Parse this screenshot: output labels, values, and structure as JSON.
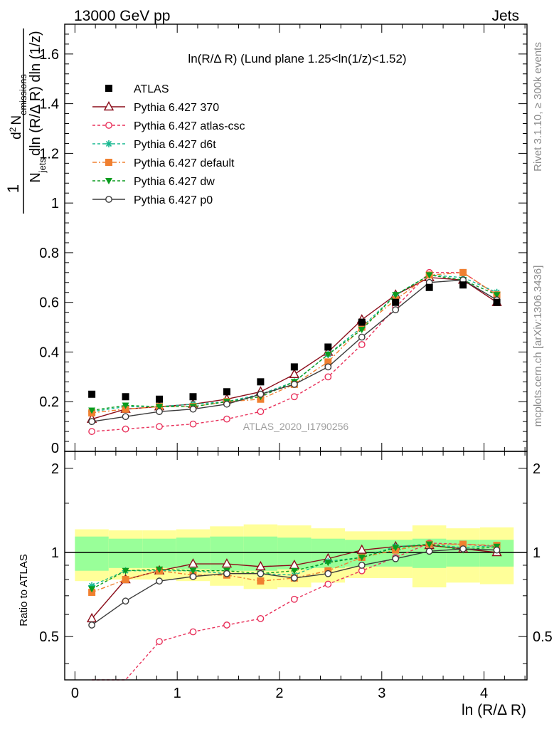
{
  "header": {
    "left": "13000 GeV pp",
    "right": "Jets"
  },
  "side_labels": {
    "rivet": "Rivet 3.1.10, ≥ 300k events",
    "mcplots": "mcplots.cern.ch [arXiv:1306.3436]"
  },
  "chart_data": {
    "type": "line",
    "title": "ln(R/Δ R) (Lund plane 1.25<ln(1/z)<1.52)",
    "watermark": "ATLAS_2020_I1790256",
    "xlabel": "ln (R/Δ R)",
    "ylabel": "1/N_jets d²N_emissions / dln(R/ΔR) dln(1/z)",
    "ylabel_parts": {
      "prefix": "1",
      "n": "N",
      "n_sub": "jets",
      "d2": "d",
      "d2_sup": "2",
      "n2": "N",
      "n2_sub": "emissions",
      "den": "dln (R/Δ R) dln (1/z)"
    },
    "ratio_ylabel": "Ratio to ATLAS",
    "xlim": [
      -0.1,
      4.42
    ],
    "ylim_main": [
      0,
      1.72
    ],
    "ylim_ratio": [
      0.35,
      2.3
    ],
    "ratio_scale": "log",
    "x_ticks": [
      "0",
      "1",
      "2",
      "3",
      "4"
    ],
    "y_ticks_main": [
      "0",
      "0.2",
      "0.4",
      "0.6",
      "0.8",
      "1",
      "1.2",
      "1.4",
      "1.6"
    ],
    "y_ticks_ratio": [
      "0.5",
      "1",
      "2"
    ],
    "legend_position": "top-left",
    "bins": [
      0.0,
      0.33,
      0.66,
      0.99,
      1.32,
      1.65,
      1.98,
      2.31,
      2.64,
      2.97,
      3.3,
      3.63,
      3.96,
      4.29
    ],
    "x": [
      0.165,
      0.495,
      0.825,
      1.155,
      1.485,
      1.815,
      2.145,
      2.475,
      2.805,
      3.135,
      3.465,
      3.795,
      4.125
    ],
    "data": {
      "name": "ATLAS",
      "values": [
        0.23,
        0.22,
        0.21,
        0.22,
        0.24,
        0.28,
        0.34,
        0.42,
        0.52,
        0.6,
        0.66,
        0.67,
        0.6
      ],
      "band_inner": [
        0.14,
        0.12,
        0.12,
        0.13,
        0.14,
        0.14,
        0.13,
        0.12,
        0.11,
        0.11,
        0.12,
        0.11,
        0.11
      ],
      "band_outer": [
        0.21,
        0.2,
        0.2,
        0.21,
        0.24,
        0.26,
        0.25,
        0.22,
        0.19,
        0.19,
        0.25,
        0.22,
        0.23
      ],
      "color": "#000000"
    },
    "series": [
      {
        "name": "Pythia 6.427 370",
        "color": "#8b0d1a",
        "dash": "",
        "marker": "triangle-open",
        "values": [
          0.13,
          0.17,
          0.18,
          0.19,
          0.21,
          0.24,
          0.31,
          0.4,
          0.53,
          0.63,
          0.7,
          0.69,
          0.6
        ]
      },
      {
        "name": "Pythia 6.427 atlas-csc",
        "color": "#e8305a",
        "dash": "4,3",
        "marker": "circle-open",
        "values": [
          0.08,
          0.09,
          0.1,
          0.11,
          0.13,
          0.16,
          0.22,
          0.3,
          0.43,
          0.58,
          0.72,
          0.72,
          0.63
        ]
      },
      {
        "name": "Pythia 6.427 d6t",
        "color": "#17b890",
        "dash": "4,3",
        "marker": "star",
        "values": [
          0.16,
          0.18,
          0.18,
          0.19,
          0.2,
          0.23,
          0.28,
          0.39,
          0.5,
          0.63,
          0.71,
          0.7,
          0.64
        ]
      },
      {
        "name": "Pythia 6.427 default",
        "color": "#f08030",
        "dash": "6,3,2,3",
        "marker": "square",
        "values": [
          0.155,
          0.17,
          0.18,
          0.18,
          0.2,
          0.21,
          0.27,
          0.36,
          0.5,
          0.61,
          0.71,
          0.72,
          0.63
        ]
      },
      {
        "name": "Pythia 6.427 dw",
        "color": "#0a9c1e",
        "dash": "4,3",
        "marker": "triangle-down",
        "values": [
          0.165,
          0.185,
          0.18,
          0.18,
          0.2,
          0.22,
          0.28,
          0.39,
          0.49,
          0.63,
          0.71,
          0.69,
          0.63
        ]
      },
      {
        "name": "Pythia 6.427 p0",
        "color": "#3c3c3c",
        "dash": "",
        "marker": "circle-open",
        "values": [
          0.12,
          0.14,
          0.16,
          0.17,
          0.19,
          0.23,
          0.27,
          0.34,
          0.46,
          0.57,
          0.68,
          0.69,
          0.61
        ]
      }
    ],
    "ratios": [
      [
        0.58,
        0.8,
        0.86,
        0.91,
        0.91,
        0.89,
        0.9,
        0.95,
        1.02,
        1.05,
        1.06,
        1.03,
        1.0
      ],
      [
        0.35,
        0.35,
        0.48,
        0.52,
        0.55,
        0.58,
        0.68,
        0.77,
        0.86,
        0.96,
        1.08,
        1.07,
        1.05
      ],
      [
        0.76,
        0.86,
        0.86,
        0.86,
        0.84,
        0.84,
        0.83,
        0.93,
        0.96,
        1.05,
        1.07,
        1.04,
        1.06
      ],
      [
        0.72,
        0.8,
        0.86,
        0.83,
        0.83,
        0.79,
        0.81,
        0.86,
        0.96,
        1.02,
        1.07,
        1.07,
        1.06
      ],
      [
        0.74,
        0.86,
        0.87,
        0.86,
        0.86,
        0.84,
        0.86,
        0.92,
        0.96,
        1.04,
        1.07,
        1.02,
        1.05
      ],
      [
        0.55,
        0.67,
        0.79,
        0.82,
        0.84,
        0.84,
        0.81,
        0.84,
        0.9,
        0.95,
        1.01,
        1.03,
        1.02
      ]
    ]
  }
}
